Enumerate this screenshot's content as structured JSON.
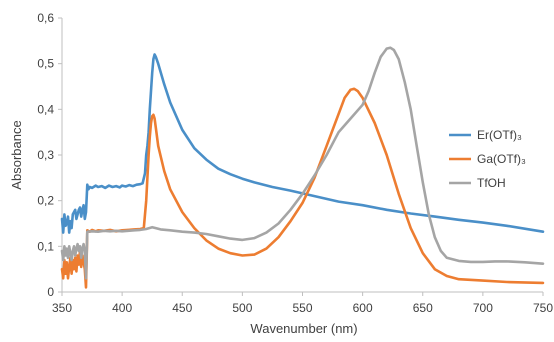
{
  "chart_data": {
    "type": "line",
    "title": "",
    "xlabel": "Wavenumber (nm)",
    "ylabel": "Absorbance",
    "xlim": [
      350,
      750
    ],
    "ylim": [
      0,
      0.6
    ],
    "grid": false,
    "legend_position": "right",
    "x_ticks": [
      "350",
      "400",
      "450",
      "500",
      "550",
      "600",
      "650",
      "700",
      "750"
    ],
    "y_ticks": [
      "0",
      "0,1",
      "0,2",
      "0,3",
      "0,4",
      "0,5",
      "0,6"
    ],
    "series": [
      {
        "name": "Er(OTf)₃",
        "color": "#4a8fc8",
        "points": [
          [
            350,
            0.16
          ],
          [
            351,
            0.13
          ],
          [
            352,
            0.17
          ],
          [
            353,
            0.145
          ],
          [
            354,
            0.15
          ],
          [
            355,
            0.165
          ],
          [
            356,
            0.13
          ],
          [
            357,
            0.155
          ],
          [
            358,
            0.14
          ],
          [
            359,
            0.17
          ],
          [
            360,
            0.175
          ],
          [
            361,
            0.18
          ],
          [
            362,
            0.16
          ],
          [
            363,
            0.17
          ],
          [
            364,
            0.18
          ],
          [
            365,
            0.185
          ],
          [
            366,
            0.165
          ],
          [
            367,
            0.18
          ],
          [
            368,
            0.19
          ],
          [
            369,
            0.16
          ],
          [
            370,
            0.175
          ],
          [
            371,
            0.235
          ],
          [
            372,
            0.225
          ],
          [
            373,
            0.23
          ],
          [
            375,
            0.228
          ],
          [
            378,
            0.233
          ],
          [
            380,
            0.23
          ],
          [
            383,
            0.232
          ],
          [
            386,
            0.228
          ],
          [
            389,
            0.233
          ],
          [
            392,
            0.23
          ],
          [
            395,
            0.232
          ],
          [
            398,
            0.229
          ],
          [
            400,
            0.233
          ],
          [
            403,
            0.231
          ],
          [
            406,
            0.234
          ],
          [
            409,
            0.232
          ],
          [
            412,
            0.235
          ],
          [
            415,
            0.236
          ],
          [
            417,
            0.238
          ],
          [
            419,
            0.26
          ],
          [
            420,
            0.3
          ],
          [
            421,
            0.32
          ],
          [
            422,
            0.35
          ],
          [
            423,
            0.4
          ],
          [
            424,
            0.44
          ],
          [
            425,
            0.48
          ],
          [
            426,
            0.51
          ],
          [
            427,
            0.52
          ],
          [
            428,
            0.515
          ],
          [
            430,
            0.5
          ],
          [
            435,
            0.455
          ],
          [
            440,
            0.415
          ],
          [
            450,
            0.355
          ],
          [
            460,
            0.315
          ],
          [
            470,
            0.29
          ],
          [
            480,
            0.27
          ],
          [
            490,
            0.258
          ],
          [
            500,
            0.248
          ],
          [
            510,
            0.24
          ],
          [
            525,
            0.23
          ],
          [
            540,
            0.222
          ],
          [
            560,
            0.21
          ],
          [
            580,
            0.198
          ],
          [
            600,
            0.19
          ],
          [
            620,
            0.18
          ],
          [
            640,
            0.172
          ],
          [
            660,
            0.165
          ],
          [
            680,
            0.158
          ],
          [
            700,
            0.152
          ],
          [
            720,
            0.145
          ],
          [
            750,
            0.132
          ]
        ]
      },
      {
        "name": "Ga(OTf)₃",
        "color": "#ed7d31",
        "points": [
          [
            350,
            0.05
          ],
          [
            351,
            0.03
          ],
          [
            352,
            0.07
          ],
          [
            353,
            0.04
          ],
          [
            354,
            0.065
          ],
          [
            355,
            0.03
          ],
          [
            356,
            0.055
          ],
          [
            357,
            0.075
          ],
          [
            358,
            0.04
          ],
          [
            359,
            0.07
          ],
          [
            360,
            0.05
          ],
          [
            361,
            0.075
          ],
          [
            362,
            0.045
          ],
          [
            363,
            0.08
          ],
          [
            364,
            0.06
          ],
          [
            365,
            0.09
          ],
          [
            366,
            0.055
          ],
          [
            367,
            0.08
          ],
          [
            368,
            0.065
          ],
          [
            369,
            0.05
          ],
          [
            370,
            0.01
          ],
          [
            371,
            0.135
          ],
          [
            373,
            0.132
          ],
          [
            375,
            0.136
          ],
          [
            378,
            0.133
          ],
          [
            380,
            0.135
          ],
          [
            385,
            0.134
          ],
          [
            390,
            0.136
          ],
          [
            395,
            0.133
          ],
          [
            400,
            0.135
          ],
          [
            405,
            0.136
          ],
          [
            410,
            0.137
          ],
          [
            415,
            0.138
          ],
          [
            418,
            0.14
          ],
          [
            420,
            0.2
          ],
          [
            421,
            0.25
          ],
          [
            422,
            0.3
          ],
          [
            423,
            0.34
          ],
          [
            424,
            0.37
          ],
          [
            425,
            0.385
          ],
          [
            426,
            0.388
          ],
          [
            427,
            0.38
          ],
          [
            428,
            0.36
          ],
          [
            430,
            0.32
          ],
          [
            435,
            0.265
          ],
          [
            440,
            0.225
          ],
          [
            450,
            0.175
          ],
          [
            460,
            0.14
          ],
          [
            470,
            0.113
          ],
          [
            480,
            0.095
          ],
          [
            490,
            0.085
          ],
          [
            500,
            0.08
          ],
          [
            510,
            0.082
          ],
          [
            520,
            0.095
          ],
          [
            530,
            0.12
          ],
          [
            540,
            0.155
          ],
          [
            550,
            0.195
          ],
          [
            560,
            0.25
          ],
          [
            570,
            0.32
          ],
          [
            580,
            0.39
          ],
          [
            585,
            0.425
          ],
          [
            590,
            0.443
          ],
          [
            593,
            0.445
          ],
          [
            596,
            0.44
          ],
          [
            600,
            0.425
          ],
          [
            610,
            0.37
          ],
          [
            620,
            0.3
          ],
          [
            630,
            0.215
          ],
          [
            640,
            0.14
          ],
          [
            650,
            0.085
          ],
          [
            660,
            0.05
          ],
          [
            670,
            0.035
          ],
          [
            680,
            0.028
          ],
          [
            700,
            0.025
          ],
          [
            720,
            0.022
          ],
          [
            750,
            0.02
          ]
        ]
      },
      {
        "name": "TfOH",
        "color": "#a5a5a5",
        "points": [
          [
            350,
            0.09
          ],
          [
            351,
            0.07
          ],
          [
            352,
            0.1
          ],
          [
            353,
            0.08
          ],
          [
            354,
            0.095
          ],
          [
            355,
            0.075
          ],
          [
            356,
            0.1
          ],
          [
            357,
            0.085
          ],
          [
            358,
            0.07
          ],
          [
            359,
            0.09
          ],
          [
            360,
            0.1
          ],
          [
            361,
            0.08
          ],
          [
            362,
            0.095
          ],
          [
            363,
            0.105
          ],
          [
            364,
            0.09
          ],
          [
            365,
            0.1
          ],
          [
            366,
            0.075
          ],
          [
            367,
            0.095
          ],
          [
            368,
            0.105
          ],
          [
            369,
            0.09
          ],
          [
            370,
            0.03
          ],
          [
            371,
            0.132
          ],
          [
            375,
            0.133
          ],
          [
            380,
            0.132
          ],
          [
            385,
            0.134
          ],
          [
            390,
            0.133
          ],
          [
            395,
            0.134
          ],
          [
            400,
            0.133
          ],
          [
            405,
            0.134
          ],
          [
            410,
            0.135
          ],
          [
            415,
            0.136
          ],
          [
            420,
            0.138
          ],
          [
            425,
            0.142
          ],
          [
            428,
            0.14
          ],
          [
            432,
            0.137
          ],
          [
            440,
            0.135
          ],
          [
            450,
            0.132
          ],
          [
            460,
            0.13
          ],
          [
            470,
            0.127
          ],
          [
            480,
            0.122
          ],
          [
            490,
            0.117
          ],
          [
            500,
            0.114
          ],
          [
            510,
            0.118
          ],
          [
            520,
            0.13
          ],
          [
            530,
            0.15
          ],
          [
            540,
            0.18
          ],
          [
            550,
            0.215
          ],
          [
            560,
            0.255
          ],
          [
            570,
            0.3
          ],
          [
            580,
            0.35
          ],
          [
            590,
            0.38
          ],
          [
            600,
            0.41
          ],
          [
            605,
            0.44
          ],
          [
            610,
            0.48
          ],
          [
            615,
            0.515
          ],
          [
            620,
            0.533
          ],
          [
            623,
            0.535
          ],
          [
            626,
            0.53
          ],
          [
            630,
            0.51
          ],
          [
            635,
            0.46
          ],
          [
            640,
            0.4
          ],
          [
            645,
            0.32
          ],
          [
            650,
            0.24
          ],
          [
            655,
            0.17
          ],
          [
            660,
            0.12
          ],
          [
            665,
            0.09
          ],
          [
            670,
            0.075
          ],
          [
            680,
            0.068
          ],
          [
            690,
            0.066
          ],
          [
            700,
            0.066
          ],
          [
            710,
            0.067
          ],
          [
            720,
            0.067
          ],
          [
            735,
            0.065
          ],
          [
            750,
            0.062
          ]
        ]
      }
    ]
  }
}
